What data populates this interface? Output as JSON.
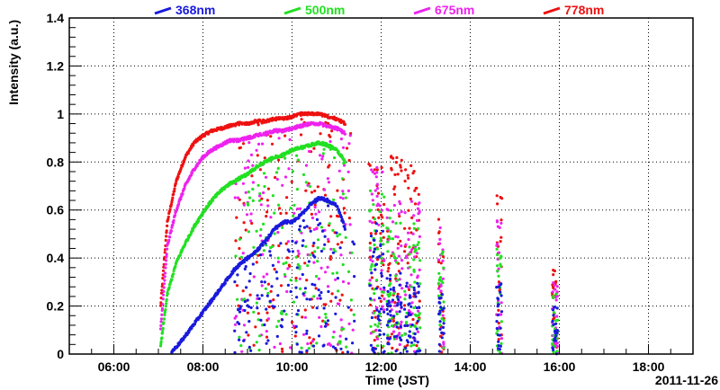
{
  "chart_data": {
    "type": "scatter",
    "title": "",
    "xlabel": "Time (JST)",
    "ylabel": "Intensity (a.u.)",
    "date_label": "2011-11-26",
    "x_unit": "hours (JST)",
    "xlim": [
      5.0,
      19.0
    ],
    "ylim": [
      0,
      1.4
    ],
    "x_ticks": [
      6,
      8,
      10,
      12,
      14,
      16,
      18
    ],
    "x_tick_labels": [
      "06:00",
      "08:00",
      "10:00",
      "12:00",
      "14:00",
      "16:00",
      "18:00"
    ],
    "y_ticks": [
      0,
      0.2,
      0.4,
      0.6,
      0.8,
      1.0,
      1.2,
      1.4
    ],
    "y_tick_labels": [
      "0",
      "0.2",
      "0.4",
      "0.6",
      "0.8",
      "1",
      "1.2",
      "1.4"
    ],
    "grid": true,
    "legend_position": "top",
    "series": [
      {
        "name": "368nm",
        "color": "#1a1adc",
        "x": [
          7.3,
          7.5,
          7.7,
          7.9,
          8.1,
          8.3,
          8.5,
          8.7,
          8.8,
          9.0,
          9.2,
          9.4,
          9.6,
          9.8,
          10.0,
          10.2,
          10.4,
          10.6,
          10.8,
          11.0,
          11.2
        ],
        "y": [
          0.01,
          0.05,
          0.1,
          0.15,
          0.2,
          0.25,
          0.3,
          0.35,
          0.37,
          0.4,
          0.43,
          0.47,
          0.52,
          0.55,
          0.55,
          0.58,
          0.62,
          0.65,
          0.64,
          0.62,
          0.52
        ]
      },
      {
        "name": "500nm",
        "color": "#22e022",
        "x": [
          7.05,
          7.2,
          7.4,
          7.6,
          7.8,
          8.0,
          8.2,
          8.4,
          8.6,
          8.8,
          9.0,
          9.2,
          9.4,
          9.6,
          9.8,
          10.0,
          10.2,
          10.4,
          10.6,
          10.8,
          11.0,
          11.2
        ],
        "y": [
          0.03,
          0.25,
          0.38,
          0.46,
          0.53,
          0.59,
          0.64,
          0.68,
          0.71,
          0.73,
          0.75,
          0.78,
          0.8,
          0.82,
          0.83,
          0.85,
          0.86,
          0.87,
          0.88,
          0.87,
          0.85,
          0.8
        ]
      },
      {
        "name": "675nm",
        "color": "#ee22ee",
        "x": [
          7.05,
          7.2,
          7.4,
          7.6,
          7.8,
          8.0,
          8.2,
          8.4,
          8.6,
          8.8,
          9.0,
          9.2,
          9.4,
          9.6,
          9.8,
          10.0,
          10.2,
          10.4,
          10.6,
          10.8,
          11.0,
          11.2
        ],
        "y": [
          0.1,
          0.45,
          0.6,
          0.7,
          0.77,
          0.82,
          0.85,
          0.87,
          0.89,
          0.89,
          0.9,
          0.91,
          0.92,
          0.93,
          0.93,
          0.94,
          0.95,
          0.96,
          0.96,
          0.95,
          0.94,
          0.92
        ]
      },
      {
        "name": "778nm",
        "color": "#ee1111",
        "x": [
          7.05,
          7.2,
          7.4,
          7.6,
          7.8,
          8.0,
          8.2,
          8.4,
          8.6,
          8.8,
          9.0,
          9.2,
          9.4,
          9.6,
          9.8,
          10.0,
          10.2,
          10.4,
          10.6,
          10.8,
          11.0,
          11.2
        ],
        "y": [
          0.2,
          0.55,
          0.72,
          0.82,
          0.88,
          0.91,
          0.93,
          0.94,
          0.95,
          0.96,
          0.96,
          0.97,
          0.97,
          0.98,
          0.98,
          0.99,
          1.0,
          1.0,
          1.0,
          0.99,
          0.98,
          0.96
        ]
      }
    ],
    "scatter_bursts": [
      {
        "x": 11.9,
        "y_max_by_series": [
          0.55,
          0.7,
          0.78,
          0.85
        ]
      },
      {
        "x": 12.3,
        "y_max_by_series": [
          0.35,
          0.6,
          0.7,
          0.85
        ]
      },
      {
        "x": 12.7,
        "y_max_by_series": [
          0.3,
          0.55,
          0.65,
          0.83
        ]
      },
      {
        "x": 13.35,
        "y_max_by_series": [
          0.25,
          0.45,
          0.55,
          0.6
        ]
      },
      {
        "x": 14.65,
        "y_max_by_series": [
          0.3,
          0.45,
          0.6,
          0.67
        ]
      },
      {
        "x": 15.9,
        "y_max_by_series": [
          0.2,
          0.25,
          0.3,
          0.35
        ]
      }
    ]
  }
}
